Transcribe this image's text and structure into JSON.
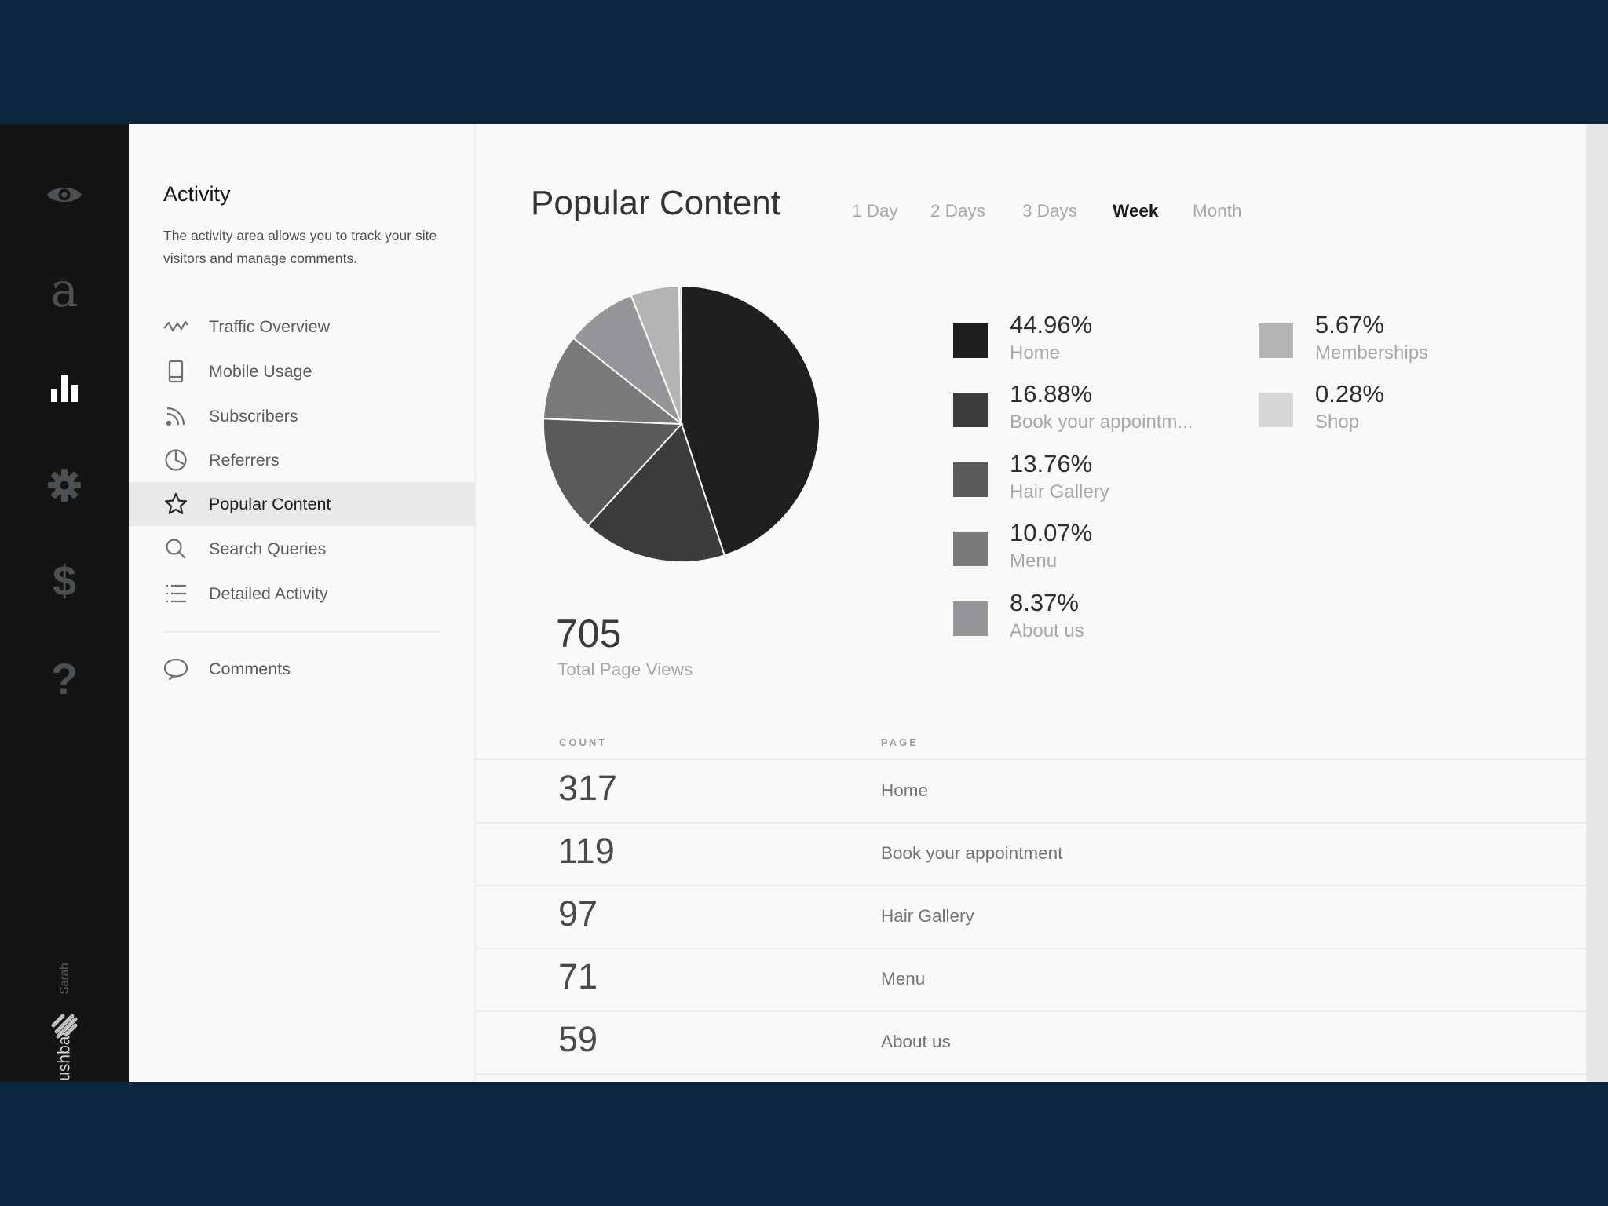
{
  "rail": {
    "icons": [
      "eye-icon",
      "logo-a-icon",
      "bar-chart-icon",
      "gear-icon",
      "dollar-icon",
      "question-icon",
      "squarespace-logo-icon"
    ],
    "logo_letter": "a",
    "dollar": "$",
    "question": "?",
    "user_name": "Sarah",
    "site_name": "Blushbar"
  },
  "activity": {
    "title": "Activity",
    "description": "The activity area allows you to track your site visitors and manage comments.",
    "nav": [
      {
        "label": "Traffic Overview",
        "icon": "trend-line-icon"
      },
      {
        "label": "Mobile Usage",
        "icon": "mobile-phone-icon"
      },
      {
        "label": "Subscribers",
        "icon": "rss-icon"
      },
      {
        "label": "Referrers",
        "icon": "pie-chart-icon"
      },
      {
        "label": "Popular Content",
        "icon": "star-icon",
        "selected": true
      },
      {
        "label": "Search Queries",
        "icon": "search-icon"
      },
      {
        "label": "Detailed Activity",
        "icon": "list-icon"
      }
    ],
    "comments_label": "Comments"
  },
  "main": {
    "title": "Popular Content",
    "ranges": [
      {
        "label": "1 Day"
      },
      {
        "label": "2 Days"
      },
      {
        "label": "3 Days"
      },
      {
        "label": "Week",
        "active": true
      },
      {
        "label": "Month"
      }
    ],
    "total": {
      "value": "705",
      "label": "Total Page Views"
    },
    "table": {
      "headers": {
        "count": "COUNT",
        "page": "PAGE"
      },
      "rows": [
        {
          "count": "317",
          "page": "Home"
        },
        {
          "count": "119",
          "page": "Book your appointment"
        },
        {
          "count": "97",
          "page": "Hair Gallery"
        },
        {
          "count": "71",
          "page": "Menu"
        },
        {
          "count": "59",
          "page": "About us"
        }
      ]
    }
  },
  "chart_data": {
    "type": "pie",
    "slices": [
      {
        "label": "Home",
        "display_label": "Home",
        "pct": "44.96%",
        "value": 44.96,
        "color": "#1f1f21"
      },
      {
        "label": "Book your appointment",
        "display_label": "Book your appointm...",
        "pct": "16.88%",
        "value": 16.88,
        "color": "#3c3c3f"
      },
      {
        "label": "Hair Gallery",
        "display_label": "Hair Gallery",
        "pct": "13.76%",
        "value": 13.76,
        "color": "#5a5a5d"
      },
      {
        "label": "Menu",
        "display_label": "Menu",
        "pct": "10.07%",
        "value": 10.07,
        "color": "#7a7a7d"
      },
      {
        "label": "About us",
        "display_label": "About us",
        "pct": "8.37%",
        "value": 8.37,
        "color": "#96969a"
      },
      {
        "label": "Memberships",
        "display_label": "Memberships",
        "pct": "5.67%",
        "value": 5.67,
        "color": "#b4b4b7"
      },
      {
        "label": "Shop",
        "display_label": "Shop",
        "pct": "0.28%",
        "value": 0.28,
        "color": "#d6d6d8"
      }
    ]
  }
}
